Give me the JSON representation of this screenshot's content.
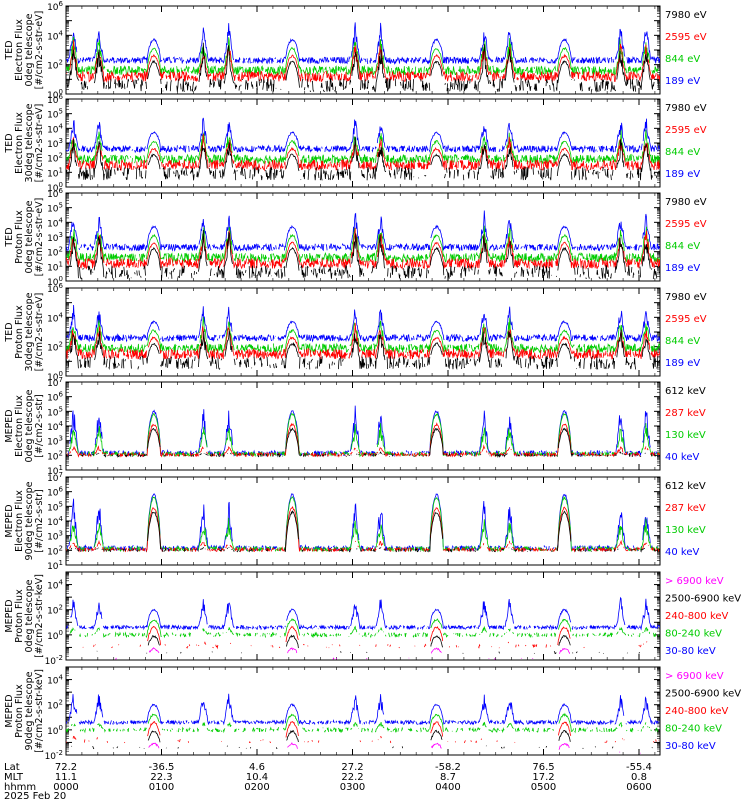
{
  "chart_data": {
    "type": "line",
    "x_axis": {
      "rows": [
        {
          "label": "Lat",
          "values": [
            "72.2",
            "-36.5",
            "4.6",
            "27.2",
            "-58.2",
            "76.5",
            "-55.4"
          ]
        },
        {
          "label": "MLT",
          "values": [
            "11.1",
            "22.3",
            "10.4",
            "22.2",
            "8.7",
            "17.2",
            "0.8"
          ]
        },
        {
          "label": "hhmm",
          "values": [
            "0000",
            "0100",
            "0200",
            "0300",
            "0400",
            "0500",
            "0600"
          ]
        }
      ],
      "date": "2025 Feb 20",
      "range_hours": [
        0,
        6.22
      ]
    },
    "panels": [
      {
        "ylabel": [
          "TED",
          "Electron Flux",
          "0deg telescope",
          "[#/cm2-s-str-eV]"
        ],
        "yscale": "log",
        "ylim_exp": [
          0,
          6
        ],
        "tick_exps": [
          0,
          2,
          4,
          6
        ],
        "series": [
          {
            "name": "7980 eV",
            "color": "#000000"
          },
          {
            "name": "2595 eV",
            "color": "#ff0000"
          },
          {
            "name": "844 eV",
            "color": "#00cc00"
          },
          {
            "name": "189 eV",
            "color": "#0000ff"
          }
        ]
      },
      {
        "ylabel": [
          "TED",
          "Electron Flux",
          "30deg telescope",
          "[#/cm2-s-str-eV]"
        ],
        "yscale": "log",
        "ylim_exp": [
          0,
          6
        ],
        "tick_exps": [
          0,
          1,
          2,
          3,
          4,
          5,
          6
        ],
        "series": [
          {
            "name": "7980 eV",
            "color": "#000000"
          },
          {
            "name": "2595 eV",
            "color": "#ff0000"
          },
          {
            "name": "844 eV",
            "color": "#00cc00"
          },
          {
            "name": "189 eV",
            "color": "#0000ff"
          }
        ]
      },
      {
        "ylabel": [
          "TED",
          "Proton Flux",
          "0deg telescope",
          "[#/cm2-s-str-eV]"
        ],
        "yscale": "log",
        "ylim_exp": [
          0,
          6
        ],
        "tick_exps": [
          0,
          1,
          2,
          3,
          4,
          5,
          6
        ],
        "series": [
          {
            "name": "7980 eV",
            "color": "#000000"
          },
          {
            "name": "2595 eV",
            "color": "#ff0000"
          },
          {
            "name": "844 eV",
            "color": "#00cc00"
          },
          {
            "name": "189 eV",
            "color": "#0000ff"
          }
        ]
      },
      {
        "ylabel": [
          "TED",
          "Proton Flux",
          "30deg telescope",
          "[#/cm2-s-str-eV]"
        ],
        "yscale": "log",
        "ylim_exp": [
          0,
          6
        ],
        "tick_exps": [
          0,
          2,
          4,
          6
        ],
        "series": [
          {
            "name": "7980 eV",
            "color": "#000000"
          },
          {
            "name": "2595 eV",
            "color": "#ff0000"
          },
          {
            "name": "844 eV",
            "color": "#00cc00"
          },
          {
            "name": "189 eV",
            "color": "#0000ff"
          }
        ]
      },
      {
        "ylabel": [
          "MEPED",
          "Electron Flux",
          "0deg telescope",
          "[#/cm2-s-str]"
        ],
        "yscale": "log",
        "ylim_exp": [
          1,
          7
        ],
        "tick_exps": [
          1,
          2,
          3,
          4,
          5,
          6,
          7
        ],
        "series": [
          {
            "name": "612 keV",
            "color": "#000000"
          },
          {
            "name": "287 keV",
            "color": "#ff0000"
          },
          {
            "name": "130 keV",
            "color": "#00cc00"
          },
          {
            "name": "40 keV",
            "color": "#0000ff"
          }
        ]
      },
      {
        "ylabel": [
          "MEPED",
          "Electron Flux",
          "90deg telescope",
          "[#/cm2-s-str]"
        ],
        "yscale": "log",
        "ylim_exp": [
          1,
          7
        ],
        "tick_exps": [
          1,
          2,
          3,
          4,
          5,
          6,
          7
        ],
        "series": [
          {
            "name": "612 keV",
            "color": "#000000"
          },
          {
            "name": "287 keV",
            "color": "#ff0000"
          },
          {
            "name": "130 keV",
            "color": "#00cc00"
          },
          {
            "name": "40 keV",
            "color": "#0000ff"
          }
        ]
      },
      {
        "ylabel": [
          "MEPED",
          "Proton Flux",
          "0deg telescope",
          "[#/cm2-s-str-keV]"
        ],
        "yscale": "log",
        "ylim_exp": [
          -2,
          5
        ],
        "tick_exps": [
          -2,
          0,
          2,
          4
        ],
        "series": [
          {
            "name": "> 6900 keV",
            "color": "#ff00ff"
          },
          {
            "name": "2500-6900 keV",
            "color": "#000000"
          },
          {
            "name": "240-800 keV",
            "color": "#ff0000"
          },
          {
            "name": "80-240 keV",
            "color": "#00cc00"
          },
          {
            "name": "30-80 keV",
            "color": "#0000ff"
          }
        ]
      },
      {
        "ylabel": [
          "MEPED",
          "Proton Flux",
          "90deg telescope",
          "[#/cm2-s-str-keV]"
        ],
        "yscale": "log",
        "ylim_exp": [
          -2,
          5
        ],
        "tick_exps": [
          -2,
          0,
          2,
          4
        ],
        "series": [
          {
            "name": "> 6900 keV",
            "color": "#ff00ff"
          },
          {
            "name": "2500-6900 keV",
            "color": "#000000"
          },
          {
            "name": "240-800 keV",
            "color": "#ff0000"
          },
          {
            "name": "80-240 keV",
            "color": "#00cc00"
          },
          {
            "name": "30-80 keV",
            "color": "#0000ff"
          }
        ]
      }
    ],
    "pass_centers_hours": [
      0.22,
      0.92,
      1.58,
      2.37,
      3.17,
      3.88,
      4.52,
      5.22,
      5.95
    ],
    "grid": false,
    "legend": "right of each panel"
  }
}
